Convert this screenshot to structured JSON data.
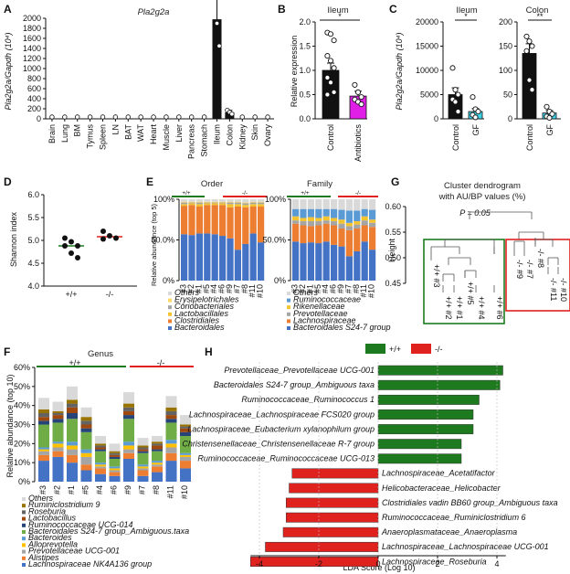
{
  "panels": {
    "A": {
      "letter": "A",
      "title": "Pla2g2a",
      "ylabel": "Pla2g2a/Gapdh (10⁴)",
      "yticks": [
        "0",
        "200",
        "400",
        "600",
        "800",
        "1000",
        "1200",
        "1400",
        "1600",
        "1800",
        "2000"
      ]
    },
    "B": {
      "letter": "B",
      "title": "Ileum",
      "ylabel": "Relative expression",
      "sig": "*",
      "yticks": [
        "0.0",
        "0.5",
        "1.0",
        "1.5",
        "2.0"
      ]
    },
    "C": {
      "letter": "C",
      "title_left": "Ileum",
      "title_right": "Colon",
      "ylabel": "Pla2g2a/Gapdh (10⁴)",
      "sig_left": "*",
      "sig_right": "**",
      "yticks_left": [
        "0",
        "5000",
        "10000",
        "15000",
        "20000"
      ],
      "yticks_right": [
        "0",
        "50",
        "100",
        "150",
        "200"
      ]
    },
    "D": {
      "letter": "D",
      "ylabel": "Shannon index",
      "yticks": [
        "4.0",
        "4.5",
        "5.0",
        "5.5",
        "6.0"
      ]
    },
    "E": {
      "letter": "E",
      "title_left": "Order",
      "title_right": "Family",
      "ylabel": "Relative abundance (top 5)",
      "yticks": [
        "0%",
        "50.0%",
        "100%"
      ],
      "wt": "+/+",
      "ko": "-/-"
    },
    "F": {
      "letter": "F",
      "title": "Genus",
      "ylabel": "Relative abundance (top 10)",
      "yticks": [
        "0%",
        "10%",
        "20%",
        "30%",
        "40%",
        "50%",
        "60%"
      ],
      "wt": "+/+",
      "ko": "-/-"
    },
    "G": {
      "letter": "G",
      "title1": "Cluster dendrogram",
      "title2": "with AU/BP values (%)",
      "ylabel": "Height",
      "pvalue": "P = 0.05",
      "yticks": [
        "0.45",
        "0.50",
        "0.55",
        "0.60"
      ]
    },
    "H": {
      "letter": "H",
      "legend_wt": "+/+",
      "legend_ko": "-/-",
      "xlabel": "LDA Score (Log 10)",
      "xticks": [
        "-4",
        "-2",
        "0",
        "2",
        "4"
      ]
    }
  },
  "colors": {
    "green": "#1e7a1e",
    "red": "#e0221f",
    "magenta": "#e020e6",
    "cyan": "#3fd3e8",
    "black": "#111111"
  },
  "chart_data": [
    {
      "id": "A",
      "type": "bar",
      "categories": [
        "Brain",
        "Lung",
        "BM",
        "Tymus",
        "Spleen",
        "LN",
        "BAT",
        "WAT",
        "Heart",
        "Muscle",
        "Liver",
        "Pancreas",
        "Stomach",
        "Ileum",
        "Colon",
        "Kidney",
        "Skin",
        "Ovary"
      ],
      "values": [
        0,
        0,
        0,
        0,
        0,
        0,
        0,
        0,
        0,
        0,
        0,
        0,
        0,
        1980,
        130,
        0,
        0,
        0
      ],
      "errors": [
        0,
        0,
        0,
        0,
        0,
        0,
        0,
        0,
        0,
        0,
        0,
        0,
        0,
        450,
        40,
        0,
        0,
        0
      ],
      "ylim": [
        0,
        2000
      ]
    },
    {
      "id": "B",
      "type": "bar",
      "categories": [
        "Control",
        "Antibiotics"
      ],
      "values": [
        1.0,
        0.47
      ],
      "errors": [
        0.15,
        0.1
      ],
      "ylim": [
        0,
        2.0
      ],
      "points": [
        [
          1.78,
          1.75,
          1.62,
          1.3,
          1.2,
          1.05,
          0.85,
          0.75,
          0.55,
          0.5
        ],
        [
          0.7,
          0.55,
          0.45,
          0.4,
          0.35,
          0.3
        ]
      ]
    },
    {
      "id": "C-ileum",
      "type": "bar",
      "categories": [
        "Control",
        "GF"
      ],
      "values": [
        5000,
        1500
      ],
      "errors": [
        1400,
        600
      ],
      "ylim": [
        0,
        20000
      ],
      "points": [
        [
          10500,
          6000,
          5000,
          4000,
          3500,
          1500
        ],
        [
          4500,
          2000,
          1500,
          800,
          300
        ]
      ]
    },
    {
      "id": "C-colon",
      "type": "bar",
      "categories": [
        "Control",
        "GF"
      ],
      "values": [
        135,
        12
      ],
      "errors": [
        20,
        5
      ],
      "ylim": [
        0,
        200
      ],
      "points": [
        [
          170,
          160,
          150,
          140,
          80,
          60
        ],
        [
          25,
          15,
          10,
          5,
          2
        ]
      ]
    },
    {
      "id": "D",
      "type": "scatter",
      "categories": [
        "+/+",
        "-/-"
      ],
      "ylim": [
        4.0,
        6.0
      ],
      "means": [
        4.88,
        5.08
      ],
      "points": [
        [
          5.05,
          4.97,
          4.88,
          4.88,
          4.72,
          4.62
        ],
        [
          5.2,
          5.1,
          5.05,
          5.03
        ]
      ]
    },
    {
      "id": "E-order",
      "type": "bar",
      "categories": [
        "#3",
        "#2",
        "#1",
        "#5",
        "#4",
        "#6",
        "#9",
        "#7",
        "#8",
        "#11",
        "#10"
      ],
      "series": [
        {
          "name": "Bacteroidales",
          "values": [
            57,
            56,
            58,
            58,
            57,
            55,
            52,
            38,
            45,
            58,
            47
          ]
        },
        {
          "name": "Clostridiales",
          "values": [
            35,
            37,
            33,
            35,
            36,
            38,
            38,
            53,
            45,
            33,
            44
          ]
        },
        {
          "name": "Lactobacillales",
          "values": [
            2,
            2,
            3,
            2,
            2,
            2,
            4,
            3,
            3,
            3,
            3
          ]
        },
        {
          "name": "Coriobacteriales",
          "values": [
            2,
            1,
            2,
            1,
            1,
            1,
            2,
            2,
            2,
            2,
            2
          ]
        },
        {
          "name": "Erysipelotrichales",
          "values": [
            1,
            1,
            1,
            1,
            1,
            1,
            1,
            1,
            1,
            1,
            1
          ]
        },
        {
          "name": "Others",
          "values": [
            3,
            3,
            3,
            3,
            3,
            3,
            3,
            3,
            4,
            3,
            3
          ]
        }
      ],
      "legend": [
        "Others",
        "Erysipelotrichales",
        "Coriobacteriales",
        "Lactobacillales",
        "Clostridiales",
        "Bacteroidales"
      ]
    },
    {
      "id": "E-family",
      "type": "bar",
      "categories": [
        "#3",
        "#2",
        "#1",
        "#5",
        "#4",
        "#6",
        "#9",
        "#7",
        "#8",
        "#11",
        "#10"
      ],
      "series": [
        {
          "name": "Bacteroidales S24-7 group",
          "values": [
            48,
            46,
            47,
            46,
            48,
            44,
            42,
            30,
            36,
            48,
            38
          ]
        },
        {
          "name": "Lachnospiraceae",
          "values": [
            22,
            22,
            20,
            22,
            22,
            24,
            22,
            32,
            28,
            20,
            28
          ]
        },
        {
          "name": "Prevotellaceae",
          "values": [
            4,
            5,
            6,
            5,
            4,
            5,
            6,
            5,
            5,
            6,
            5
          ]
        },
        {
          "name": "Rikenellaceae",
          "values": [
            5,
            4,
            5,
            4,
            5,
            4,
            5,
            4,
            4,
            5,
            4
          ]
        },
        {
          "name": "Ruminococcaceae",
          "values": [
            9,
            11,
            10,
            11,
            9,
            11,
            12,
            15,
            13,
            9,
            12
          ]
        },
        {
          "name": "Others",
          "values": [
            12,
            12,
            12,
            12,
            12,
            12,
            13,
            14,
            14,
            12,
            13
          ]
        }
      ],
      "legend": [
        "Others",
        "Ruminococcaceae",
        "Rikenellaceae",
        "Prevotellaceae",
        "Lachnospiraceae",
        "Bacteroidales S24-7 group"
      ]
    },
    {
      "id": "F",
      "type": "bar",
      "categories": [
        "#3",
        "#2",
        "#1",
        "#5",
        "#4",
        "#6",
        "#9",
        "#7",
        "#8",
        "#11",
        "#10"
      ],
      "series": [
        {
          "name": "Lachnospiraceae NK4A136 group",
          "values": [
            11,
            13,
            10,
            6,
            4,
            3,
            12,
            3,
            5,
            11,
            7
          ]
        },
        {
          "name": "Alistipes",
          "values": [
            3,
            3,
            4,
            3,
            3,
            2,
            3,
            3,
            3,
            4,
            4
          ]
        },
        {
          "name": "Prevotellaceae UCG-001",
          "values": [
            2,
            2,
            3,
            4,
            1,
            1,
            2,
            1,
            1,
            3,
            2
          ]
        },
        {
          "name": "Alloprevotella",
          "values": [
            1,
            2,
            2,
            2,
            1,
            1,
            2,
            1,
            1,
            2,
            1
          ]
        },
        {
          "name": "Bacteroides",
          "values": [
            1,
            1,
            2,
            2,
            1,
            1,
            2,
            1,
            1,
            2,
            1
          ]
        },
        {
          "name": "Bacteroidales S24-7 group_Ambiguous taxa",
          "values": [
            12,
            10,
            12,
            9,
            6,
            4,
            12,
            6,
            5,
            9,
            9
          ]
        },
        {
          "name": "Ruminococcaceae UCG-014",
          "values": [
            2,
            2,
            3,
            2,
            1,
            1,
            2,
            1,
            1,
            2,
            2
          ]
        },
        {
          "name": "Lactobacillus",
          "values": [
            2,
            2,
            3,
            2,
            1,
            1,
            2,
            1,
            2,
            2,
            2
          ]
        },
        {
          "name": "Roseburia",
          "values": [
            2,
            1,
            2,
            2,
            1,
            1,
            2,
            1,
            1,
            2,
            1
          ]
        },
        {
          "name": "Ruminiclostridium 9",
          "values": [
            2,
            1,
            2,
            2,
            1,
            1,
            2,
            1,
            1,
            2,
            1
          ]
        },
        {
          "name": "Others",
          "values": [
            6,
            5,
            7,
            5,
            4,
            4,
            6,
            4,
            3,
            6,
            5
          ]
        }
      ],
      "legend": [
        "Others",
        "Ruminiclostridium 9",
        "Roseburia",
        "Lactobacillus",
        "Ruminococcaceae UCG-014",
        "Bacteroidales S24-7 group_Ambiguous.taxa",
        "Bacteroides",
        "Alloprevotella",
        "Prevotellaceae UCG-001",
        "Alistipes",
        "Lachnospiraceae NK4A136 group"
      ]
    },
    {
      "id": "G",
      "type": "dendrogram",
      "leaves": [
        "+/+ #3",
        "+/+ #2",
        "+/+ #1",
        "+/+ #5",
        "+/+ #4",
        "+/+ #6",
        "-/- #9",
        "-/- #7",
        "-/- #8",
        "-/- #11",
        "-/- #10"
      ]
    },
    {
      "id": "H",
      "type": "bar",
      "orientation": "horizontal",
      "xlim": [
        -4.5,
        4.5
      ],
      "categories": [
        "Prevotellaceae_Prevotellaceae UCG-001",
        "Bacteroidales S24-7 group_Ambiguous taxa",
        "Ruminococcaceae_Ruminococcus 1",
        "Lachnospiraceae_Lachnospiraceae FCS020 group",
        "Lachnospiraceae_Eubacterium xylanophilum group",
        "Christensenellaceae_Christensenellaceae R-7 group",
        "Ruminococcaceae_Ruminococcaceae UCG-013",
        "Lachnospiraceae_Acetatifactor",
        "Helicobacteraceae_Helicobacter",
        "Clostridiales vadin BB60 group_Ambiguous taxa",
        "Ruminococcaceae_Ruminiclostridium 6",
        "Anaeroplasmataceae_Anaeroplasma",
        "Lachnospiraceae_Lachnospiraceae UCG-001",
        "Lachnospiraceae_Roseburia"
      ],
      "values": [
        4.2,
        4.1,
        3.4,
        3.2,
        3.2,
        2.8,
        2.8,
        -2.9,
        -3.0,
        -3.1,
        -3.1,
        -3.2,
        -3.8,
        -4.3
      ]
    }
  ]
}
